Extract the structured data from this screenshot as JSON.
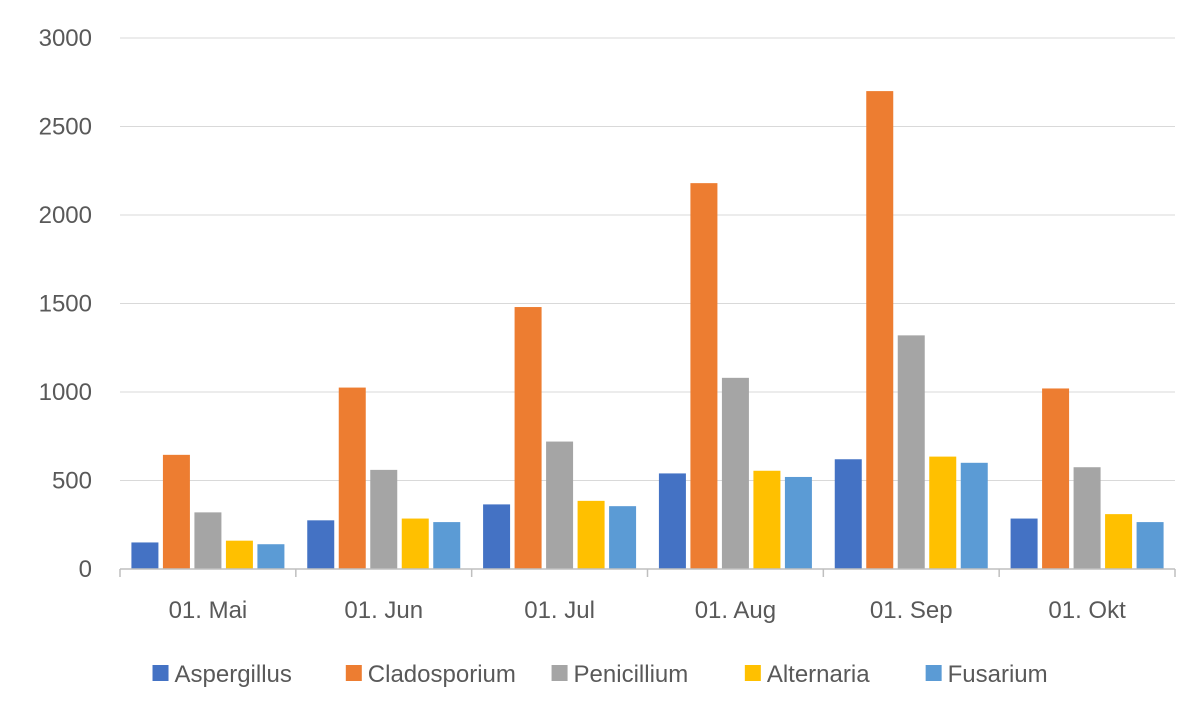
{
  "chart_data": {
    "type": "bar",
    "title": "",
    "xlabel": "",
    "ylabel": "",
    "categories": [
      "01. Mai",
      "01. Jun",
      "01. Jul",
      "01. Aug",
      "01. Sep",
      "01. Okt"
    ],
    "yticks": [
      "0",
      "500",
      "1000",
      "1500",
      "2000",
      "2500",
      "3000"
    ],
    "ylim": [
      0,
      3000
    ],
    "grid": true,
    "legend_position": "bottom",
    "series": [
      {
        "name": "Aspergillus",
        "color": "#4472C4",
        "values": [
          150,
          275,
          365,
          540,
          620,
          285
        ]
      },
      {
        "name": "Cladosporium",
        "color": "#ED7D31",
        "values": [
          645,
          1025,
          1480,
          2180,
          2700,
          1020
        ]
      },
      {
        "name": "Penicillium",
        "color": "#A5A5A5",
        "values": [
          320,
          560,
          720,
          1080,
          1320,
          575
        ]
      },
      {
        "name": "Alternaria",
        "color": "#FFC000",
        "values": [
          160,
          285,
          385,
          555,
          635,
          310
        ]
      },
      {
        "name": "Fusarium",
        "color": "#5B9BD5",
        "values": [
          140,
          265,
          355,
          520,
          600,
          265
        ]
      }
    ]
  }
}
